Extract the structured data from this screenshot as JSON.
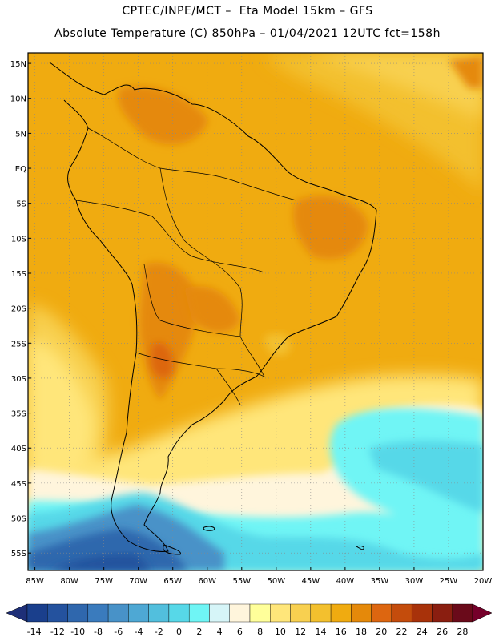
{
  "header": {
    "line1": "CPTEC/INPE/MCT –  Eta Model 15km – GFS",
    "line2": "Absolute Temperature (C) 850hPa – 01/04/2021 12UTC fct=158h"
  },
  "map": {
    "lat_labels": [
      "15N",
      "10N",
      "5N",
      "EQ",
      "5S",
      "10S",
      "15S",
      "20S",
      "25S",
      "30S",
      "35S",
      "40S",
      "45S",
      "50S",
      "55S"
    ],
    "lat_values": [
      15,
      10,
      5,
      0,
      -5,
      -10,
      -15,
      -20,
      -25,
      -30,
      -35,
      -40,
      -45,
      -50,
      -55
    ],
    "lon_labels": [
      "85W",
      "80W",
      "75W",
      "70W",
      "65W",
      "60W",
      "55W",
      "50W",
      "45W",
      "40W",
      "35W",
      "30W",
      "25W",
      "20W"
    ],
    "lon_values": [
      -85,
      -80,
      -75,
      -70,
      -65,
      -60,
      -55,
      -50,
      -45,
      -40,
      -35,
      -30,
      -25,
      -20
    ],
    "extent": {
      "lon_min": -86,
      "lon_max": -20,
      "lat_min": -57.5,
      "lat_max": 16.5
    },
    "gridlines": "dotted"
  },
  "colorbar": {
    "labels": [
      "-14",
      "-12",
      "-10",
      "-8",
      "-6",
      "-4",
      "-2",
      "0",
      "2",
      "4",
      "6",
      "8",
      "10",
      "12",
      "14",
      "16",
      "18",
      "20",
      "22",
      "24",
      "26",
      "28"
    ],
    "colors": [
      "#1a3f8c",
      "#24529e",
      "#2f67ad",
      "#3a7bbd",
      "#4892c8",
      "#4ea8d4",
      "#52bfdd",
      "#57d8e8",
      "#6ff5f5",
      "#d6f5f8",
      "#fff5dc",
      "#ffff9a",
      "#ffe67a",
      "#f8d050",
      "#f3c02e",
      "#f0ab10",
      "#e5890a",
      "#dd6610",
      "#c44c0c",
      "#a8320a",
      "#8a1e10",
      "#6a0a1a"
    ],
    "under_color": "#1e2f78",
    "over_color": "#75002a"
  }
}
